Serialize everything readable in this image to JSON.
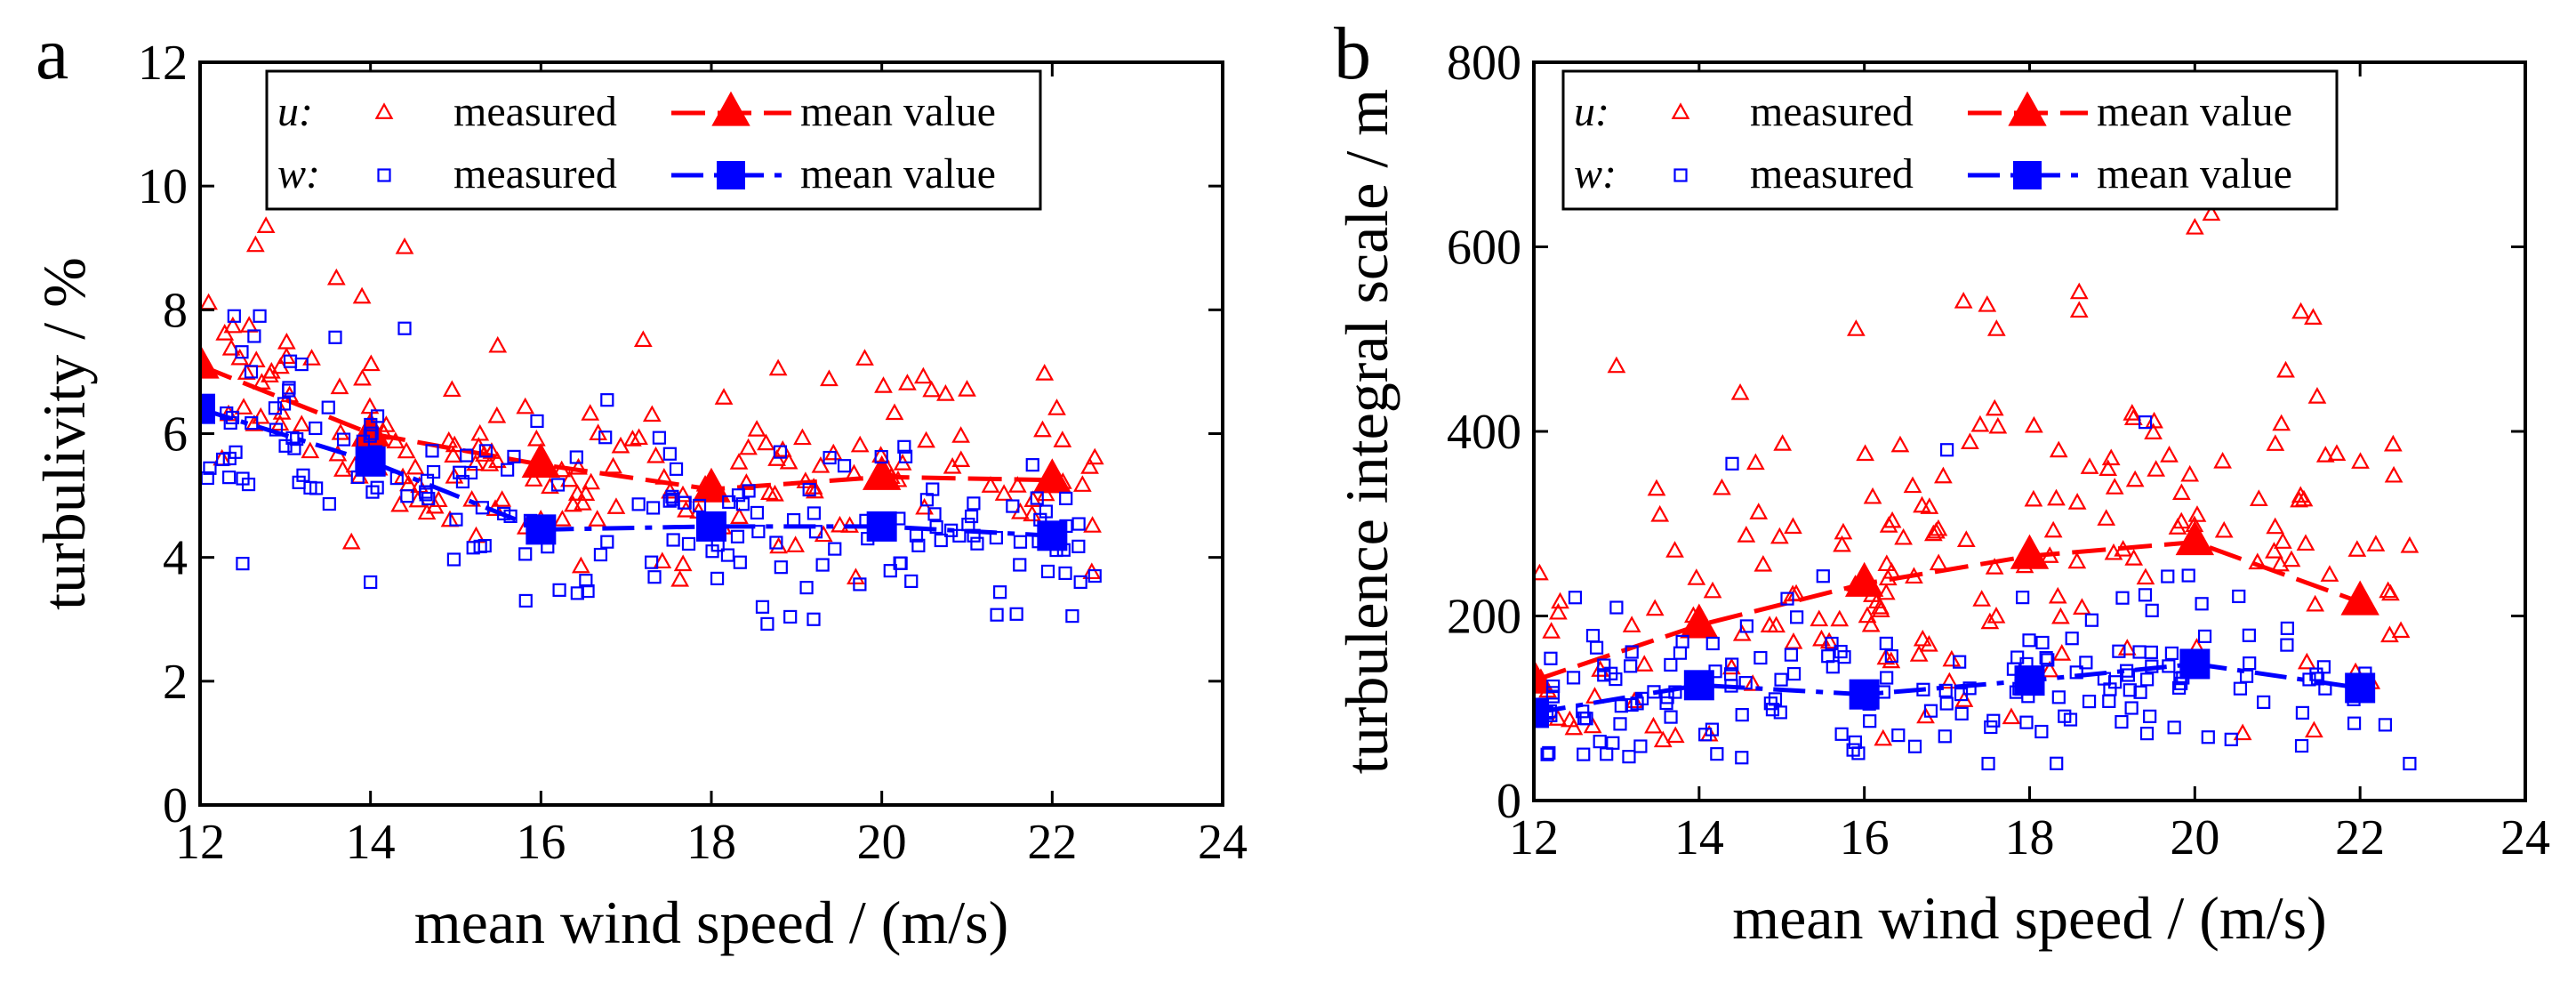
{
  "chart_data": [
    {
      "panel_label": "a",
      "type": "scatter",
      "xlabel": "mean wind speed / (m/s)",
      "ylabel": "turbulivity / %",
      "xlim": [
        12,
        24
      ],
      "ylim": [
        0,
        12
      ],
      "xticks": [
        12,
        14,
        16,
        18,
        20,
        22,
        24
      ],
      "yticks": [
        0,
        2,
        4,
        6,
        8,
        10,
        12
      ],
      "xtick_labels": [
        "12",
        "14",
        "16",
        "18",
        "20",
        "22",
        "24"
      ],
      "ytick_labels": [
        "0",
        "2",
        "4",
        "6",
        "8",
        "10",
        "12"
      ],
      "legend": {
        "position": "top",
        "rows": [
          {
            "var": "u:",
            "measured": "measured",
            "mean": "mean value",
            "color": "#ff0000",
            "marker": "triangle"
          },
          {
            "var": "w:",
            "measured": "measured",
            "mean": "mean value",
            "color": "#0000ff",
            "marker": "square"
          }
        ]
      },
      "series": [
        {
          "name": "u measured",
          "color": "#ff0000",
          "marker": "triangle-open",
          "cloud": {
            "seed": 11,
            "count": 170,
            "spread": 0.75,
            "min": 3.6
          },
          "extra_points": [
            [
              14.4,
              9.0
            ],
            [
              13.6,
              8.5
            ],
            [
              13.9,
              8.2
            ],
            [
              12.1,
              8.1
            ],
            [
              17.2,
              7.5
            ],
            [
              19.8,
              7.2
            ],
            [
              20.3,
              6.8
            ],
            [
              21.0,
              6.7
            ],
            [
              22.5,
              5.6
            ]
          ]
        },
        {
          "name": "u mean value",
          "color": "#ff0000",
          "marker": "triangle",
          "line": "dashed",
          "x": [
            12,
            14,
            16,
            18,
            20,
            22
          ],
          "y": [
            7.1,
            6.0,
            5.5,
            5.1,
            5.3,
            5.25
          ]
        },
        {
          "name": "w measured",
          "color": "#0000ff",
          "marker": "square-open",
          "cloud": {
            "seed": 29,
            "count": 170,
            "spread": 0.7,
            "min": 2.9
          },
          "extra_points": [
            [
              12.4,
              7.9
            ],
            [
              12.7,
              7.9
            ],
            [
              14.4,
              7.7
            ],
            [
              12.6,
              7.0
            ],
            [
              19.2,
              3.0
            ],
            [
              18.6,
              3.2
            ],
            [
              22.5,
              3.7
            ],
            [
              14.0,
              3.6
            ],
            [
              12.5,
              3.9
            ]
          ]
        },
        {
          "name": "w mean value",
          "color": "#0000ff",
          "marker": "square",
          "line": "dashdot",
          "x": [
            12,
            14,
            16,
            18,
            20,
            22
          ],
          "y": [
            6.4,
            5.55,
            4.45,
            4.5,
            4.5,
            4.35
          ]
        }
      ]
    },
    {
      "panel_label": "b",
      "type": "scatter",
      "xlabel": "mean wind speed / (m/s)",
      "ylabel": "turbulence integral scale / m",
      "xlim": [
        12,
        24
      ],
      "ylim": [
        0,
        800
      ],
      "xticks": [
        12,
        14,
        16,
        18,
        20,
        22,
        24
      ],
      "yticks": [
        0,
        200,
        400,
        600,
        800
      ],
      "xtick_labels": [
        "12",
        "14",
        "16",
        "18",
        "20",
        "22",
        "24"
      ],
      "ytick_labels": [
        "0",
        "200",
        "400",
        "600",
        "800"
      ],
      "legend": {
        "position": "top",
        "rows": [
          {
            "var": "u:",
            "measured": "measured",
            "mean": "mean value",
            "color": "#ff0000",
            "marker": "triangle"
          },
          {
            "var": "w:",
            "measured": "measured",
            "mean": "mean value",
            "color": "#0000ff",
            "marker": "square"
          }
        ]
      },
      "series": [
        {
          "name": "u measured",
          "color": "#ff0000",
          "marker": "triangle-open",
          "cloud": {
            "seed": 47,
            "count": 170,
            "spread": 95,
            "min": 60
          },
          "extra_points": [
            [
              20.0,
              620
            ],
            [
              20.2,
              635
            ],
            [
              17.2,
              540
            ],
            [
              18.6,
              550
            ],
            [
              18.6,
              530
            ],
            [
              15.9,
              510
            ],
            [
              17.6,
              510
            ],
            [
              13.0,
              470
            ],
            [
              21.1,
              465
            ],
            [
              22.4,
              385
            ],
            [
              22.6,
              275
            ]
          ]
        },
        {
          "name": "u mean value",
          "color": "#ff0000",
          "marker": "triangle",
          "line": "dashed",
          "x": [
            12,
            14,
            16,
            18,
            20,
            22
          ],
          "y": [
            130,
            190,
            235,
            265,
            280,
            215
          ]
        },
        {
          "name": "w measured",
          "color": "#0000ff",
          "marker": "square-open",
          "cloud": {
            "seed": 83,
            "count": 170,
            "spread": 40,
            "min": 35
          },
          "extra_points": [
            [
              19.4,
              410
            ],
            [
              14.4,
              365
            ],
            [
              17.0,
              380
            ],
            [
              12.5,
              220
            ],
            [
              22.6,
              40
            ],
            [
              17.5,
              40
            ],
            [
              12.6,
              50
            ]
          ]
        },
        {
          "name": "w mean value",
          "color": "#0000ff",
          "marker": "square",
          "line": "dashdot",
          "x": [
            12,
            14,
            16,
            18,
            20,
            22
          ],
          "y": [
            95,
            125,
            115,
            130,
            148,
            122
          ]
        }
      ]
    }
  ]
}
